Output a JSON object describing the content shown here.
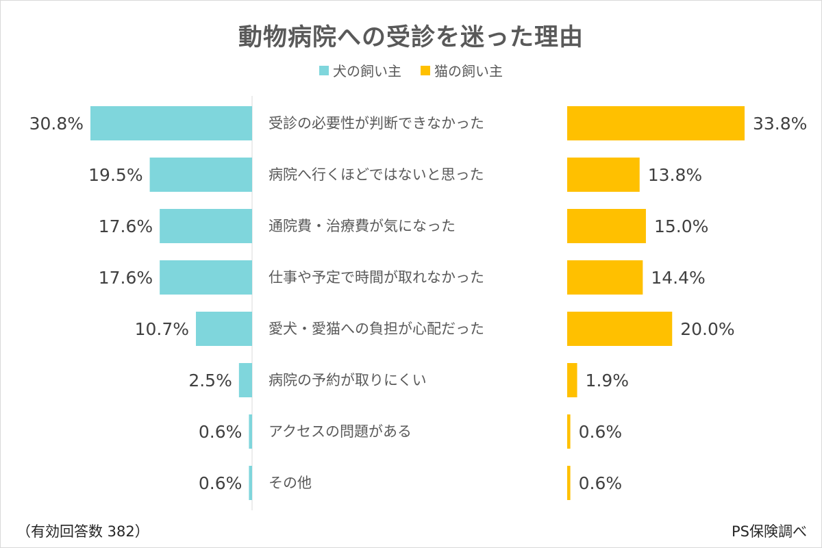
{
  "chart_data": {
    "type": "bar",
    "title": "動物病院への受診を迷った理由",
    "categories": [
      "受診の必要性が判断できなかった",
      "病院へ行くほどではないと思った",
      "通院費・治療費が気になった",
      "仕事や予定で時間が取れなかった",
      "愛犬・愛猫への負担が心配だった",
      "病院の予約が取りにくい",
      "アクセスの問題がある",
      "その他"
    ],
    "series": [
      {
        "name": "犬の飼い主",
        "color": "#7fd6dc",
        "values": [
          30.8,
          19.5,
          17.6,
          17.6,
          10.7,
          2.5,
          0.6,
          0.6
        ],
        "labels": [
          "30.8%",
          "19.5%",
          "17.6%",
          "17.6%",
          "10.7%",
          "2.5%",
          "0.6%",
          "0.6%"
        ]
      },
      {
        "name": "猫の飼い主",
        "color": "#ffc000",
        "values": [
          33.8,
          13.8,
          15.0,
          14.4,
          20.0,
          1.9,
          0.6,
          0.6
        ],
        "labels": [
          "33.8%",
          "13.8%",
          "15.0%",
          "14.4%",
          "20.0%",
          "1.9%",
          "0.6%",
          "0.6%"
        ]
      }
    ],
    "unit": "%",
    "legend_position": "top-center",
    "grid": false
  },
  "footnote": "（有効回答数 382）",
  "source": "PS保険調べ"
}
